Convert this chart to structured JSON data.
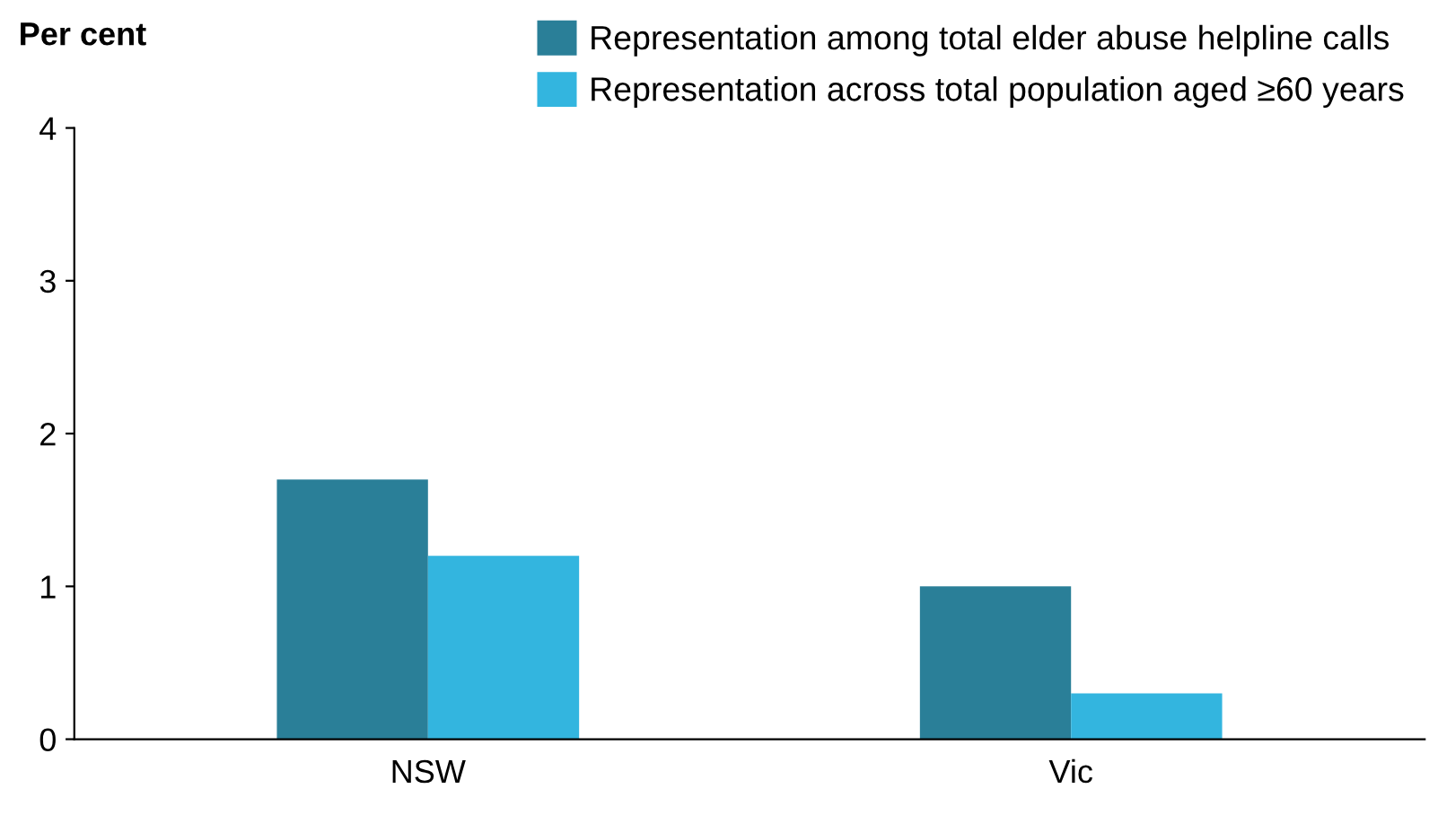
{
  "chart_data": {
    "type": "bar",
    "ylabel": "Per cent",
    "categories": [
      "NSW",
      "Vic"
    ],
    "series": [
      {
        "name": "Representation among total elder abuse helpline calls",
        "color": "#2a7f98",
        "values": [
          1.7,
          1.0
        ]
      },
      {
        "name": "Representation across total population aged ≥60 years",
        "color": "#33b5df",
        "values": [
          1.2,
          0.3
        ]
      }
    ],
    "ylim": [
      0,
      4
    ],
    "yticks": [
      0,
      1,
      2,
      3,
      4
    ],
    "grid": false,
    "legend": "top right"
  }
}
